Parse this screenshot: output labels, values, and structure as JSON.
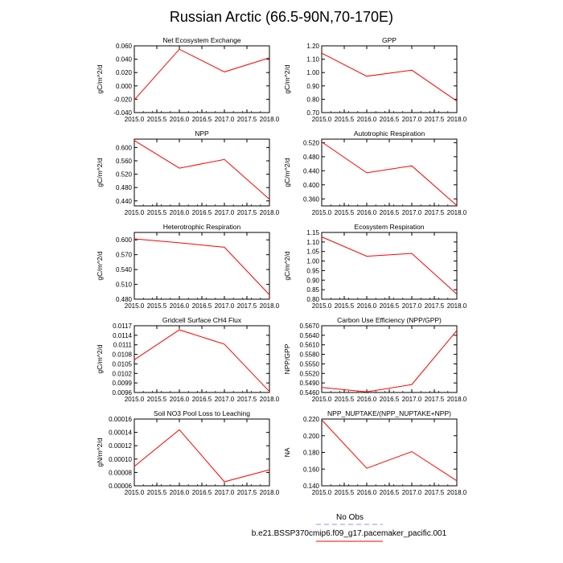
{
  "figure": {
    "title": "Russian Arctic (66.5-90N,70-170E)",
    "legend": {
      "entries": [
        {
          "label": "No Obs",
          "color": "#8f8fff",
          "dash": "dashed"
        },
        {
          "label": "b.e21.BSSP370cmip6.f09_g17.pacemaker_pacific.001",
          "color": "#ff0000",
          "dash": "solid"
        }
      ]
    },
    "xticks": [
      "2015.0",
      "2015.5",
      "2016.0",
      "2016.5",
      "2017.0",
      "2017.5",
      "2018.0"
    ]
  },
  "chart_data": [
    {
      "type": "line",
      "title": "Net Ecosystem Exchange",
      "ylabel": "gC/m^2/d",
      "x": [
        2015.0,
        2016.0,
        2017.0,
        2018.0
      ],
      "xlim": [
        2015.0,
        2018.0
      ],
      "y": [
        -0.021,
        0.055,
        0.021,
        0.042
      ],
      "ylim": [
        -0.04,
        0.06
      ],
      "yticks": [
        "-0.040",
        "-0.020",
        "0.000",
        "0.020",
        "0.040",
        "0.060"
      ],
      "color": "#ff0000"
    },
    {
      "type": "line",
      "title": "GPP",
      "ylabel": "gC/m^2/d",
      "x": [
        2015.0,
        2016.0,
        2017.0,
        2018.0
      ],
      "xlim": [
        2015.0,
        2018.0
      ],
      "y": [
        1.145,
        0.972,
        1.018,
        0.786
      ],
      "ylim": [
        0.7,
        1.2
      ],
      "yticks": [
        "0.70",
        "0.80",
        "0.90",
        "1.00",
        "1.10",
        "1.20"
      ],
      "color": "#ff0000"
    },
    {
      "type": "line",
      "title": "NPP",
      "ylabel": "gC/m^2/d",
      "x": [
        2015.0,
        2016.0,
        2017.0,
        2018.0
      ],
      "xlim": [
        2015.0,
        2018.0
      ],
      "y": [
        0.621,
        0.538,
        0.564,
        0.445
      ],
      "ylim": [
        0.425,
        0.625
      ],
      "yticks": [
        "0.440",
        "0.480",
        "0.520",
        "0.560",
        "0.600"
      ],
      "color": "#ff0000"
    },
    {
      "type": "line",
      "title": "Autotrophic Respiration",
      "ylabel": "gC/m^2/d",
      "x": [
        2015.0,
        2016.0,
        2017.0,
        2018.0
      ],
      "xlim": [
        2015.0,
        2018.0
      ],
      "y": [
        0.522,
        0.434,
        0.454,
        0.341
      ],
      "ylim": [
        0.34,
        0.53
      ],
      "yticks": [
        "0.360",
        "0.400",
        "0.440",
        "0.480",
        "0.520"
      ],
      "color": "#ff0000"
    },
    {
      "type": "line",
      "title": "Heterotrophic Respiration",
      "ylabel": "gC/m^2/d",
      "x": [
        2015.0,
        2016.0,
        2017.0,
        2018.0
      ],
      "xlim": [
        2015.0,
        2018.0
      ],
      "y": [
        0.602,
        0.594,
        0.585,
        0.489
      ],
      "ylim": [
        0.48,
        0.615
      ],
      "yticks": [
        "0.480",
        "0.510",
        "0.540",
        "0.570",
        "0.600"
      ],
      "color": "#ff0000"
    },
    {
      "type": "line",
      "title": "Ecosystem Respiration",
      "ylabel": "gC/m^2/d",
      "x": [
        2015.0,
        2016.0,
        2017.0,
        2018.0
      ],
      "xlim": [
        2015.0,
        2018.0
      ],
      "y": [
        1.127,
        1.025,
        1.04,
        0.826
      ],
      "ylim": [
        0.8,
        1.15
      ],
      "yticks": [
        "0.80",
        "0.85",
        "0.90",
        "0.95",
        "1.00",
        "1.05",
        "1.10",
        "1.15"
      ],
      "color": "#ff0000"
    },
    {
      "type": "line",
      "title": "Gridcell Surface CH4 Flux",
      "ylabel": "gC/m^2/d",
      "x": [
        2015.0,
        2016.0,
        2017.0,
        2018.0
      ],
      "xlim": [
        2015.0,
        2018.0
      ],
      "y": [
        0.01063,
        0.01157,
        0.01112,
        0.00963
      ],
      "ylim": [
        0.0096,
        0.0117
      ],
      "yticks": [
        "0.0096",
        "0.0099",
        "0.0102",
        "0.0105",
        "0.0108",
        "0.0111",
        "0.0114",
        "0.0117"
      ],
      "color": "#ff0000"
    },
    {
      "type": "line",
      "title": "Carbon Use Efficiency (NPP/GPP)",
      "ylabel": "NPP/GPP",
      "x": [
        2015.0,
        2016.0,
        2017.0,
        2018.0
      ],
      "xlim": [
        2015.0,
        2018.0
      ],
      "y": [
        0.5476,
        0.5462,
        0.5485,
        0.5655
      ],
      "ylim": [
        0.546,
        0.567
      ],
      "yticks": [
        "0.5460",
        "0.5490",
        "0.5520",
        "0.5550",
        "0.5580",
        "0.5610",
        "0.5640",
        "0.5670"
      ],
      "color": "#ff0000"
    },
    {
      "type": "line",
      "title": "Soil NO3 Pool Loss to Leaching",
      "ylabel": "gN/m^2/d",
      "x": [
        2015.0,
        2016.0,
        2017.0,
        2018.0
      ],
      "xlim": [
        2015.0,
        2018.0
      ],
      "y": [
        8.9e-05,
        0.000144,
        6.6e-05,
        8.4e-05
      ],
      "ylim": [
        6e-05,
        0.00016
      ],
      "yticks": [
        "0.00006",
        "0.00008",
        "0.00010",
        "0.00012",
        "0.00014",
        "0.00016"
      ],
      "color": "#ff0000"
    },
    {
      "type": "line",
      "title": "NPP_NUPTAKE/(NPP_NUPTAKE+NPP)",
      "ylabel": "NA",
      "x": [
        2015.0,
        2016.0,
        2017.0,
        2018.0
      ],
      "xlim": [
        2015.0,
        2018.0
      ],
      "y": [
        0.219,
        0.161,
        0.181,
        0.146
      ],
      "ylim": [
        0.14,
        0.22
      ],
      "yticks": [
        "0.140",
        "0.160",
        "0.180",
        "0.200",
        "0.220"
      ],
      "color": "#ff0000"
    }
  ]
}
